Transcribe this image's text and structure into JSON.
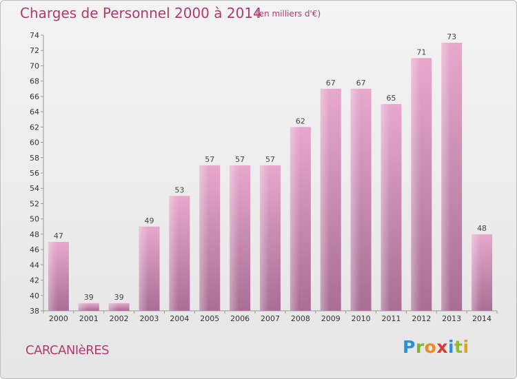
{
  "title": "Charges de Personnel 2000 à 2014",
  "subtitle": "(en milliers d'€)",
  "city": "CARCANIèRES",
  "logo_letters": [
    "P",
    "r",
    "o",
    "x",
    "i",
    "t",
    "i"
  ],
  "colors": {
    "title": "#b03a6e",
    "bar_light": "#e7a8cc",
    "bar_dark": "#a86e94",
    "logo_blue": "#2f8fd0",
    "logo_green": "#7ab83a",
    "logo_orange": "#f08a1c",
    "logo_red": "#d83a3a"
  },
  "chart_data": {
    "type": "bar",
    "categories": [
      "2000",
      "2001",
      "2002",
      "2003",
      "2004",
      "2005",
      "2006",
      "2007",
      "2008",
      "2009",
      "2010",
      "2011",
      "2012",
      "2013",
      "2014"
    ],
    "values": [
      47,
      39,
      39,
      49,
      53,
      57,
      57,
      57,
      62,
      67,
      67,
      65,
      71,
      73,
      48
    ],
    "ylim": [
      38,
      74
    ],
    "yticks": [
      38,
      40,
      42,
      44,
      46,
      48,
      50,
      52,
      54,
      56,
      58,
      60,
      62,
      64,
      66,
      68,
      70,
      72,
      74
    ],
    "grid": false,
    "legend": "none"
  }
}
